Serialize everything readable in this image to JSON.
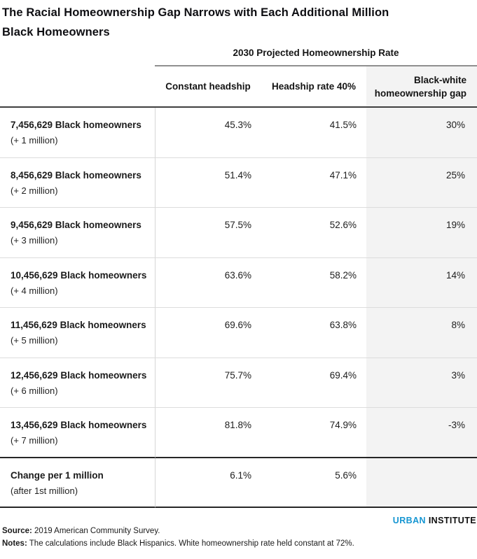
{
  "title": {
    "line1": "The Racial Homeownership Gap Narrows with Each Additional Million",
    "line2": "Black Homeowners"
  },
  "chart_data": {
    "type": "table",
    "title": "The Racial Homeownership Gap Narrows with Each Additional Million Black Homeowners",
    "group_header": "2030 Projected Homeownership Rate",
    "columns": [
      "Constant headship",
      "Headship rate 40%",
      "Black-white homeownership gap"
    ],
    "rows": [
      {
        "label": "7,456,629 Black homeowners",
        "sublabel": "(+ 1 million)",
        "values": [
          "45.3%",
          "41.5%",
          "30%"
        ]
      },
      {
        "label": "8,456,629 Black homeowners",
        "sublabel": "(+ 2 million)",
        "values": [
          "51.4%",
          "47.1%",
          "25%"
        ]
      },
      {
        "label": "9,456,629 Black homeowners",
        "sublabel": "(+ 3 million)",
        "values": [
          "57.5%",
          "52.6%",
          "19%"
        ]
      },
      {
        "label": "10,456,629 Black homeowners",
        "sublabel": "(+ 4 million)",
        "values": [
          "63.6%",
          "58.2%",
          "14%"
        ]
      },
      {
        "label": "11,456,629 Black homeowners",
        "sublabel": "(+ 5 million)",
        "values": [
          "69.6%",
          "63.8%",
          "8%"
        ]
      },
      {
        "label": "12,456,629 Black homeowners",
        "sublabel": "(+ 6 million)",
        "values": [
          "75.7%",
          "69.4%",
          "3%"
        ]
      },
      {
        "label": "13,456,629 Black homeowners",
        "sublabel": "(+ 7 million)",
        "values": [
          "81.8%",
          "74.9%",
          "-3%"
        ]
      },
      {
        "label": "Change per 1 million",
        "sublabel": "(after 1st million)",
        "values": [
          "6.1%",
          "5.6%",
          ""
        ]
      }
    ],
    "layout": {
      "gap_column_shaded": true,
      "values_alignment": "right"
    }
  },
  "footer": {
    "logo_urban": "URBAN",
    "logo_institute": "INSTITUTE",
    "source_label": "Source:",
    "source_text": " 2019 American Community Survey.",
    "notes_label": "Notes:",
    "notes_text": " The calculations include Black Hispanics. White homeownership rate held constant at 72%."
  },
  "colors": {
    "accent_cyan": "#1696d2",
    "gap_column_bg": "#f3f3f3"
  }
}
